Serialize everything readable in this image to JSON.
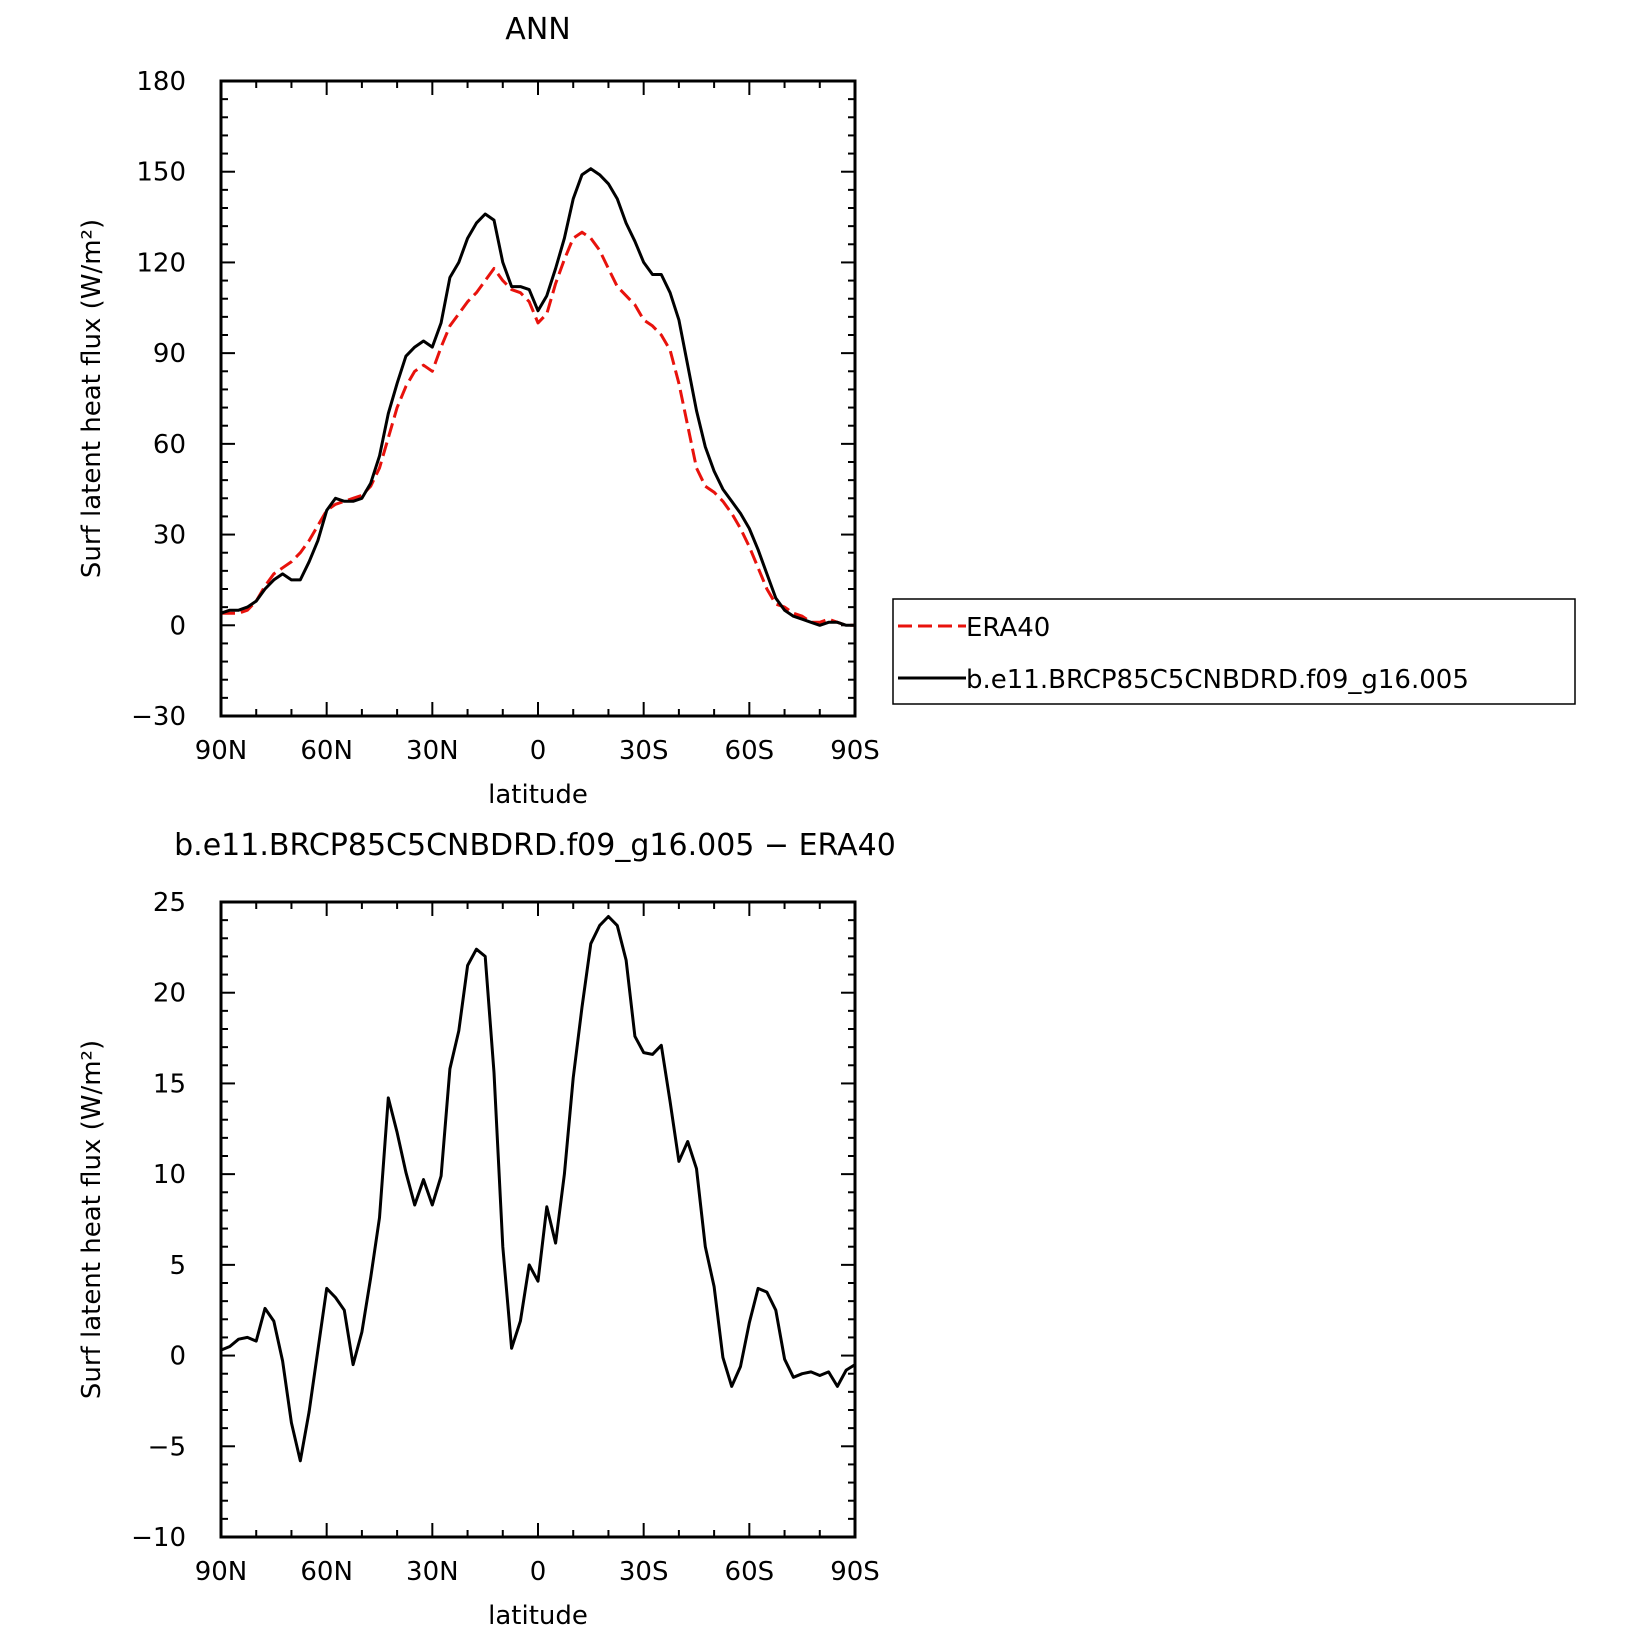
{
  "chart_data": [
    {
      "type": "line",
      "title": "ANN",
      "xlabel": "latitude",
      "ylabel": "Surf latent heat flux (W/m²)",
      "xlim": [
        90,
        -90
      ],
      "ylim": [
        -30,
        180
      ],
      "x_ticks": [
        {
          "value": 90,
          "label": "90N"
        },
        {
          "value": 60,
          "label": "60N"
        },
        {
          "value": 30,
          "label": "30N"
        },
        {
          "value": 0,
          "label": "0"
        },
        {
          "value": -30,
          "label": "30S"
        },
        {
          "value": -60,
          "label": "60S"
        },
        {
          "value": -90,
          "label": "90S"
        }
      ],
      "y_ticks": [
        {
          "value": 180,
          "label": "180"
        },
        {
          "value": 150,
          "label": "150"
        },
        {
          "value": 120,
          "label": "120"
        },
        {
          "value": 90,
          "label": "90"
        },
        {
          "value": 60,
          "label": "60"
        },
        {
          "value": 30,
          "label": "30"
        },
        {
          "value": 0,
          "label": "0"
        },
        {
          "value": -30,
          "label": "−30"
        }
      ],
      "legend_position": "right",
      "series": [
        {
          "name": "ERA40",
          "color": "#e8120c",
          "style": "dashed",
          "x": [
            90,
            87.5,
            85,
            82.5,
            80,
            77.5,
            75,
            72.5,
            70,
            67.5,
            65,
            62.5,
            60,
            57.5,
            55,
            52.5,
            50,
            47.5,
            45,
            42.5,
            40,
            37.5,
            35,
            32.5,
            30,
            27.5,
            25,
            22.5,
            20,
            17.5,
            15,
            12.5,
            10,
            7.5,
            5,
            2.5,
            0,
            -2.5,
            -5,
            -7.5,
            -10,
            -12.5,
            -15,
            -17.5,
            -20,
            -22.5,
            -25,
            -27.5,
            -30,
            -32.5,
            -35,
            -37.5,
            -40,
            -42.5,
            -45,
            -47.5,
            -50,
            -52.5,
            -55,
            -57.5,
            -60,
            -62.5,
            -65,
            -67.5,
            -70,
            -72.5,
            -75,
            -77.5,
            -80,
            -82.5,
            -85,
            -87.5,
            -90
          ],
          "values": [
            4,
            4,
            4,
            5,
            8,
            13,
            17,
            19,
            21,
            24,
            28,
            33,
            38,
            40,
            41,
            42,
            43,
            46,
            52,
            62,
            72,
            79,
            84,
            86,
            84,
            92,
            99,
            103,
            107,
            110,
            114,
            118,
            114,
            111,
            110,
            107,
            100,
            103,
            113,
            121,
            128,
            130,
            128,
            124,
            118,
            112,
            109,
            106,
            101,
            99,
            96,
            91,
            80,
            66,
            52,
            46,
            44,
            41,
            37,
            32,
            26,
            19,
            12,
            7,
            6,
            4,
            3,
            1,
            1,
            2,
            1,
            0,
            0
          ]
        },
        {
          "name": "b.e11.BRCP85C5CNBDRD.f09_g16.005",
          "color": "#000000",
          "style": "solid",
          "x": [
            90,
            87.5,
            85,
            82.5,
            80,
            77.5,
            75,
            72.5,
            70,
            67.5,
            65,
            62.5,
            60,
            57.5,
            55,
            52.5,
            50,
            47.5,
            45,
            42.5,
            40,
            37.5,
            35,
            32.5,
            30,
            27.5,
            25,
            22.5,
            20,
            17.5,
            15,
            12.5,
            10,
            7.5,
            5,
            2.5,
            0,
            -2.5,
            -5,
            -7.5,
            -10,
            -12.5,
            -15,
            -17.5,
            -20,
            -22.5,
            -25,
            -27.5,
            -30,
            -32.5,
            -35,
            -37.5,
            -40,
            -42.5,
            -45,
            -47.5,
            -50,
            -52.5,
            -55,
            -57.5,
            -60,
            -62.5,
            -65,
            -67.5,
            -70,
            -72.5,
            -75,
            -77.5,
            -80,
            -82.5,
            -85,
            -87.5,
            -90
          ],
          "values": [
            4,
            5,
            5,
            6,
            8,
            12,
            15,
            17,
            15,
            15,
            21,
            28,
            38,
            42,
            41,
            41,
            42,
            47,
            56,
            70,
            80,
            89,
            92,
            94,
            92,
            100,
            115,
            120,
            128,
            133,
            136,
            134,
            120,
            112,
            112,
            111,
            104,
            109,
            118,
            128,
            141,
            149,
            151,
            149,
            146,
            141,
            133,
            127,
            120,
            116,
            116,
            110,
            101,
            86,
            71,
            59,
            51,
            45,
            41,
            37,
            32,
            25,
            17,
            9,
            5,
            3,
            2,
            1,
            0,
            1,
            1,
            0,
            0
          ]
        }
      ]
    },
    {
      "type": "line",
      "title": "b.e11.BRCP85C5CNBDRD.f09_g16.005 − ERA40",
      "xlabel": "latitude",
      "ylabel": "Surf latent heat flux (W/m²)",
      "xlim": [
        90,
        -90
      ],
      "ylim": [
        -10,
        25
      ],
      "x_ticks": [
        {
          "value": 90,
          "label": "90N"
        },
        {
          "value": 60,
          "label": "60N"
        },
        {
          "value": 30,
          "label": "30N"
        },
        {
          "value": 0,
          "label": "0"
        },
        {
          "value": -30,
          "label": "30S"
        },
        {
          "value": -60,
          "label": "60S"
        },
        {
          "value": -90,
          "label": "90S"
        }
      ],
      "y_ticks": [
        {
          "value": 25,
          "label": "25"
        },
        {
          "value": 20,
          "label": "20"
        },
        {
          "value": 15,
          "label": "15"
        },
        {
          "value": 10,
          "label": "10"
        },
        {
          "value": 5,
          "label": "5"
        },
        {
          "value": 0,
          "label": "0"
        },
        {
          "value": -5,
          "label": "−5"
        },
        {
          "value": -10,
          "label": "−10"
        }
      ],
      "series": [
        {
          "color": "#000000",
          "style": "solid",
          "x": [
            90,
            87.5,
            85,
            82.5,
            80,
            77.5,
            75,
            72.5,
            70,
            67.5,
            65,
            62.5,
            60,
            57.5,
            55,
            52.5,
            50,
            47.5,
            45,
            42.5,
            40,
            37.5,
            35,
            32.5,
            30,
            27.5,
            25,
            22.5,
            20,
            17.5,
            15,
            12.5,
            10,
            7.5,
            5,
            2.5,
            0,
            -2.5,
            -5,
            -7.5,
            -10,
            -12.5,
            -15,
            -17.5,
            -20,
            -22.5,
            -25,
            -27.5,
            -30,
            -32.5,
            -35,
            -37.5,
            -40,
            -42.5,
            -45,
            -47.5,
            -50,
            -52.5,
            -55,
            -57.5,
            -60,
            -62.5,
            -65,
            -67.5,
            -70,
            -72.5,
            -75,
            -77.5,
            -80,
            -82.5,
            -85,
            -87.5,
            -90
          ],
          "values": [
            0.3,
            0.5,
            0.9,
            1.0,
            0.8,
            2.6,
            1.9,
            -0.3,
            -3.7,
            -5.8,
            -3.1,
            0.3,
            3.7,
            3.2,
            2.5,
            -0.5,
            1.3,
            4.3,
            7.6,
            14.2,
            12.3,
            10.1,
            8.3,
            9.7,
            8.3,
            9.9,
            15.8,
            17.9,
            21.5,
            22.4,
            22.0,
            15.6,
            6.0,
            0.4,
            1.9,
            5.0,
            4.1,
            8.2,
            6.2,
            10.0,
            15.3,
            19.2,
            22.7,
            23.7,
            24.2,
            23.7,
            21.8,
            17.6,
            16.7,
            16.6,
            17.1,
            14.0,
            10.7,
            11.8,
            10.3,
            6.0,
            3.8,
            -0.1,
            -1.7,
            -0.6,
            1.8,
            3.7,
            3.5,
            2.5,
            -0.2,
            -1.2,
            -1.0,
            -0.9,
            -1.1,
            -0.9,
            -1.7,
            -0.8,
            -0.5
          ]
        }
      ]
    }
  ]
}
